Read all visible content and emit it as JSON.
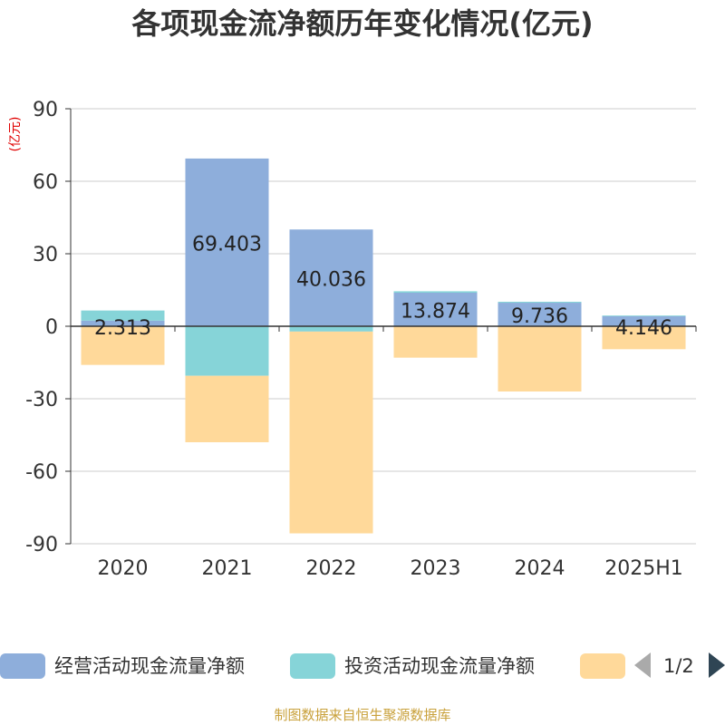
{
  "title": "各项现金流净额历年变化情况(亿元)",
  "unit_label": "(亿元)",
  "source": "制图数据来自恒生聚源数据库",
  "pager": {
    "text": "1/2"
  },
  "colors": {
    "operating": "#8eaedb",
    "investing": "#86d4d8",
    "financing": "#ffd99a",
    "grid": "#cccccc",
    "axis": "#333333",
    "source": "#c9a13b",
    "unit": "#e00000"
  },
  "chart_data": {
    "type": "bar",
    "stacked": true,
    "title": "各项现金流净额历年变化情况(亿元)",
    "ylabel": "(亿元)",
    "ylim": [
      -90,
      90
    ],
    "yticks": [
      90,
      60,
      30,
      0,
      -30,
      -60,
      -90
    ],
    "grid": true,
    "legend_position": "bottom",
    "categories": [
      "2020",
      "2021",
      "2022",
      "2023",
      "2024",
      "2025H1"
    ],
    "series": [
      {
        "name": "经营活动现金流量净额",
        "values": [
          2.313,
          69.403,
          40.036,
          13.874,
          9.736,
          4.146
        ],
        "labels": [
          "2.313",
          "69.403",
          "40.036",
          "13.874",
          "9.736",
          "4.146"
        ]
      },
      {
        "name": "投资活动现金流量净额",
        "values": [
          4.2,
          -20.5,
          -2.2,
          0.6,
          0.4,
          0.3
        ]
      },
      {
        "name": "",
        "values": [
          -16.0,
          -27.5,
          -83.5,
          -13.0,
          -27.0,
          -9.5
        ]
      }
    ]
  }
}
